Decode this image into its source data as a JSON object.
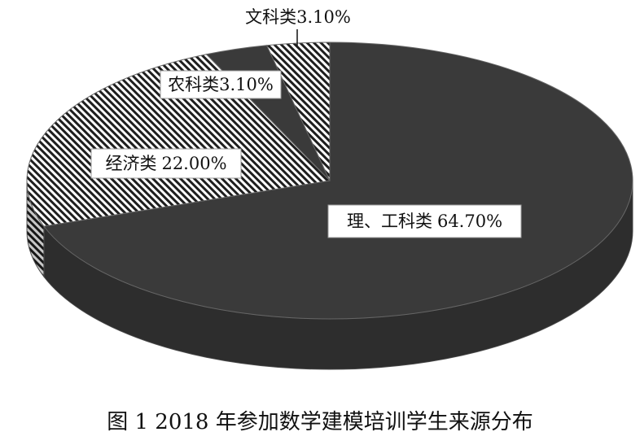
{
  "chart_data": {
    "type": "pie3d",
    "title": "图 1 2018 年参加数学建模培训学生来源分布",
    "categories": [
      "理、工科类",
      "经济类",
      "农科类",
      "文科类"
    ],
    "values": [
      64.7,
      22.0,
      3.1,
      3.1
    ],
    "value_labels": [
      "64.70%",
      "22.00%",
      "3.10%",
      "3.10%"
    ],
    "color": "#3a3a3a",
    "patterns": [
      "solid",
      "hatch",
      "solid",
      "hatch"
    ]
  }
}
